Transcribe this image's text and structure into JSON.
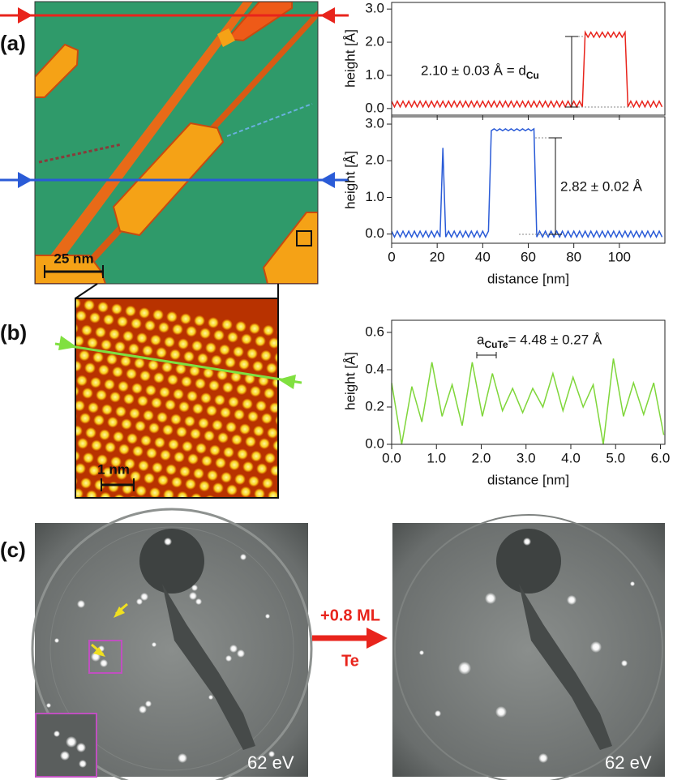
{
  "panel_labels": {
    "a": "(a)",
    "b": "(b)",
    "c": "(c)"
  },
  "scale_bars": {
    "a": "25 nm",
    "b": "1 nm"
  },
  "leed": {
    "left_energy": "62 eV",
    "right_energy": "62 eV"
  },
  "deposition_arrow": {
    "top": "+0.8 ML",
    "bottom": "Te"
  },
  "chart_data": [
    {
      "type": "line",
      "ylabel": "height [Å]",
      "xlim": [
        0,
        120
      ],
      "ylim": [
        -0.2,
        3.2
      ],
      "yticks": [
        {
          "value": 0,
          "label": "0.0"
        },
        {
          "value": 1,
          "label": "1.0"
        },
        {
          "value": 2,
          "label": "2.0"
        },
        {
          "value": 3,
          "label": "3.0"
        }
      ],
      "xticks": [
        0,
        20,
        40,
        60,
        80,
        100
      ],
      "show_xtick_labels": false,
      "annotations": [
        {
          "parts": [
            {
              "text": "2.10 ± 0.03 Å = d"
            },
            {
              "text": "Cu",
              "sub": true
            }
          ]
        }
      ],
      "color": "#e8241c",
      "x": [
        0,
        1.25,
        2.5,
        3.75,
        5,
        6.25,
        7.5,
        8.75,
        10,
        11.25,
        12.5,
        13.75,
        15,
        16.25,
        17.5,
        18.75,
        20,
        21.25,
        22.5,
        23.75,
        25,
        26.25,
        27.5,
        28.75,
        30,
        31.25,
        32.5,
        33.75,
        35,
        36.25,
        37.5,
        38.75,
        40,
        41.25,
        42.5,
        43.75,
        45,
        46.25,
        47.5,
        48.75,
        50,
        51.25,
        52.5,
        53.75,
        55,
        56.25,
        57.5,
        58.75,
        60,
        61.25,
        62.5,
        63.75,
        65,
        66.25,
        67.5,
        68.75,
        70,
        71.25,
        72.5,
        73.75,
        75,
        76.25,
        77.5,
        78.75,
        80,
        81.25,
        82.5,
        83.75,
        85,
        86.25,
        87.5,
        88.75,
        90,
        91.25,
        92.5,
        93.75,
        95,
        96.25,
        97.5,
        98.75,
        100,
        101.25,
        102.5,
        103.75,
        105,
        106.25,
        107.5,
        108.75,
        110,
        111.25,
        112.5,
        113.75,
        115,
        116.25,
        117.5,
        118.75
      ],
      "values": [
        0.22,
        0.05,
        0.22,
        0.05,
        0.22,
        0.05,
        0.22,
        0.05,
        0.22,
        0.05,
        0.22,
        0.05,
        0.22,
        0.05,
        0.22,
        0.05,
        0.22,
        0.05,
        0.22,
        0.05,
        0.22,
        0.05,
        0.22,
        0.05,
        0.22,
        0.05,
        0.22,
        0.05,
        0.22,
        0.05,
        0.22,
        0.05,
        0.22,
        0.05,
        0.22,
        0.05,
        0.22,
        0.05,
        0.22,
        0.05,
        0.22,
        0.05,
        0.22,
        0.05,
        0.22,
        0.05,
        0.22,
        0.05,
        0.22,
        0.05,
        0.22,
        0.05,
        0.22,
        0.05,
        0.22,
        0.05,
        0.22,
        0.05,
        0.22,
        0.05,
        0.22,
        0.05,
        0.22,
        0.05,
        0.22,
        0.05,
        0.22,
        0.05,
        2.3,
        2.15,
        2.3,
        2.15,
        2.3,
        2.15,
        2.3,
        2.15,
        2.3,
        2.15,
        2.3,
        2.15,
        2.3,
        2.15,
        2.3,
        0.05,
        0.22,
        0.05,
        0.22,
        0.05,
        0.22,
        0.05,
        0.22,
        0.05,
        0.22,
        0.05,
        0.22,
        0.05
      ]
    },
    {
      "type": "line",
      "ylabel": "height [Å]",
      "xlabel": "distance [nm]",
      "xlim": [
        0,
        120
      ],
      "ylim": [
        -0.25,
        3.2
      ],
      "yticks": [
        {
          "value": 0,
          "label": "0.0"
        },
        {
          "value": 1,
          "label": "1.0"
        },
        {
          "value": 2,
          "label": "2.0"
        },
        {
          "value": 3,
          "label": "3.0"
        }
      ],
      "xticks": [
        0,
        20,
        40,
        60,
        80,
        100
      ],
      "show_xtick_labels": true,
      "annotations": [
        {
          "parts": [
            {
              "text": "2.82 ± 0.02 Å"
            }
          ]
        }
      ],
      "color": "#2a5bd7",
      "x": [
        0,
        1.25,
        2.5,
        3.75,
        5,
        6.25,
        7.5,
        8.75,
        10,
        11.25,
        12.5,
        13.75,
        15,
        16.25,
        17.5,
        18.75,
        20,
        21.25,
        22.5,
        23.75,
        25,
        26.25,
        27.5,
        28.75,
        30,
        31.25,
        32.5,
        33.75,
        35,
        36.25,
        37.5,
        38.75,
        40,
        41.25,
        42.5,
        43.75,
        45,
        46.25,
        47.5,
        48.75,
        50,
        51.25,
        52.5,
        53.75,
        55,
        56.25,
        57.5,
        58.75,
        60,
        61.25,
        62.5,
        63.75,
        65,
        66.25,
        67.5,
        68.75,
        70,
        71.25,
        72.5,
        73.75,
        75,
        76.25,
        77.5,
        78.75,
        80,
        81.25,
        82.5,
        83.75,
        85,
        86.25,
        87.5,
        88.75,
        90,
        91.25,
        92.5,
        93.75,
        95,
        96.25,
        97.5,
        98.75,
        100,
        101.25,
        102.5,
        103.75,
        105,
        106.25,
        107.5,
        108.75,
        110,
        111.25,
        112.5,
        113.75,
        115,
        116.25,
        117.5,
        118.75
      ],
      "values": [
        0.08,
        -0.08,
        0.08,
        -0.08,
        0.08,
        -0.08,
        0.08,
        -0.08,
        0.08,
        -0.08,
        0.08,
        -0.08,
        0.08,
        -0.08,
        0.08,
        -0.08,
        0.08,
        -0.08,
        2.35,
        -0.08,
        0.08,
        -0.08,
        0.08,
        -0.08,
        0.08,
        -0.08,
        0.08,
        -0.08,
        0.08,
        -0.08,
        0.08,
        -0.08,
        0.08,
        -0.08,
        0.08,
        2.82,
        2.87,
        2.82,
        2.87,
        2.82,
        2.87,
        2.82,
        2.87,
        2.82,
        2.87,
        2.82,
        2.87,
        2.82,
        2.87,
        2.82,
        2.87,
        -0.08,
        0.08,
        -0.08,
        0.08,
        -0.08,
        0.08,
        -0.08,
        0.08,
        -0.08,
        0.08,
        -0.08,
        0.08,
        -0.08,
        0.08,
        -0.08,
        0.08,
        -0.08,
        0.08,
        -0.08,
        0.08,
        -0.08,
        0.08,
        -0.08,
        0.08,
        -0.08,
        0.08,
        -0.08,
        0.08,
        -0.08,
        0.08,
        -0.08,
        0.08,
        -0.08,
        0.08,
        -0.08,
        0.08,
        -0.08,
        0.08,
        -0.08,
        0.08,
        -0.08,
        0.08,
        -0.08,
        0.08,
        -0.08
      ]
    },
    {
      "type": "line",
      "ylabel": "height [Å]",
      "xlabel": "distance [nm]",
      "xlim": [
        0,
        6.1
      ],
      "ylim": [
        0,
        0.665
      ],
      "yticks": [
        {
          "value": 0,
          "label": "0.0"
        },
        {
          "value": 0.2,
          "label": "0.2"
        },
        {
          "value": 0.4,
          "label": "0.4"
        },
        {
          "value": 0.6,
          "label": "0.6"
        }
      ],
      "xticks": [
        {
          "value": 0,
          "label": "0.0"
        },
        {
          "value": 1,
          "label": "1.0"
        },
        {
          "value": 2,
          "label": "2.0"
        },
        {
          "value": 3,
          "label": "3.0"
        },
        {
          "value": 4,
          "label": "4.0"
        },
        {
          "value": 5,
          "label": "5.0"
        },
        {
          "value": 6,
          "label": "6.0"
        }
      ],
      "show_xtick_labels": true,
      "annotations": [
        {
          "parts": [
            {
              "text": "a"
            },
            {
              "text": "CuTe",
              "sub": true
            },
            {
              "text": " = 4.48 ± 0.27 Å"
            }
          ]
        }
      ],
      "color": "#7fd63a",
      "x": [
        0,
        0.225,
        0.45,
        0.675,
        0.9,
        1.125,
        1.35,
        1.575,
        1.8,
        2.025,
        2.25,
        2.475,
        2.7,
        2.925,
        3.15,
        3.375,
        3.6,
        3.825,
        4.05,
        4.275,
        4.5,
        4.725,
        4.95,
        5.175,
        5.4,
        5.625,
        5.85,
        6.075
      ],
      "values": [
        0.33,
        0.0,
        0.31,
        0.12,
        0.44,
        0.15,
        0.32,
        0.1,
        0.44,
        0.15,
        0.38,
        0.18,
        0.3,
        0.17,
        0.3,
        0.2,
        0.38,
        0.18,
        0.36,
        0.2,
        0.32,
        0.0,
        0.46,
        0.15,
        0.33,
        0.16,
        0.33,
        0.05
      ]
    }
  ]
}
